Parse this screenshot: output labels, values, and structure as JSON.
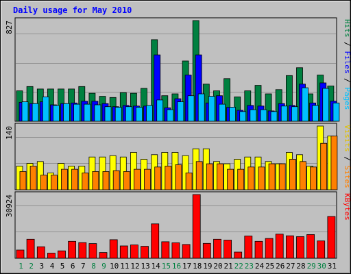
{
  "chart_data": {
    "type": "bar",
    "title": "Daily usage for May 2010",
    "days": [
      "1",
      "2",
      "3",
      "4",
      "5",
      "6",
      "7",
      "8",
      "9",
      "10",
      "11",
      "12",
      "13",
      "14",
      "15",
      "16",
      "17",
      "18",
      "19",
      "20",
      "21",
      "22",
      "23",
      "24",
      "25",
      "26",
      "27",
      "28",
      "29",
      "30",
      "31"
    ],
    "weekend_days": [
      "1",
      "2",
      "8",
      "9",
      "15",
      "16",
      "22",
      "23",
      "29",
      "30"
    ],
    "panels": [
      {
        "id": "hits-files-pages",
        "max_label": "827",
        "ymax": 827,
        "axis_labels": [
          "Pages",
          "Files",
          "Hits"
        ],
        "series": [
          {
            "name": "Hits",
            "color": "#008040",
            "values": [
              250,
              285,
              265,
              265,
              265,
              265,
              285,
              230,
              205,
              195,
              235,
              230,
              270,
              670,
              210,
              225,
              495,
              827,
              305,
              250,
              350,
              200,
              250,
              295,
              225,
              260,
              375,
              440,
              225,
              380,
              290
            ]
          },
          {
            "name": "Files",
            "color": "#0000ff",
            "values": [
              155,
              145,
              160,
              135,
              145,
              150,
              165,
              165,
              145,
              120,
              130,
              125,
              125,
              545,
              110,
              185,
              380,
              545,
              150,
              210,
              115,
              90,
              130,
              125,
              85,
              145,
              130,
              305,
              150,
              315,
              165
            ]
          },
          {
            "name": "Pages",
            "color": "#00c0ff",
            "values": [
              160,
              145,
              200,
              130,
              145,
              140,
              140,
              135,
              120,
              115,
              120,
              115,
              130,
              175,
              95,
              160,
              210,
              225,
              205,
              140,
              115,
              80,
              95,
              95,
              80,
              125,
              120,
              275,
              130,
              270,
              150
            ]
          }
        ]
      },
      {
        "id": "visits-sites",
        "max_label": "140",
        "ymax": 140,
        "axis_labels": [
          "Sites",
          "Visits"
        ],
        "series": [
          {
            "name": "Visits",
            "color": "#ffff00",
            "values": [
              52,
              58,
              62,
              37,
              58,
              52,
              52,
              72,
              72,
              75,
              72,
              82,
              67,
              77,
              82,
              82,
              75,
              90,
              90,
              62,
              57,
              67,
              72,
              72,
              62,
              57,
              82,
              77,
              52,
              140,
              118
            ]
          },
          {
            "name": "Sites",
            "color": "#ff8000",
            "values": [
              40,
              52,
              32,
              32,
              45,
              45,
              37,
              40,
              40,
              42,
              40,
              45,
              45,
              50,
              52,
              55,
              37,
              62,
              57,
              57,
              45,
              45,
              50,
              50,
              57,
              57,
              67,
              62,
              50,
              102,
              118
            ]
          }
        ]
      },
      {
        "id": "kbytes",
        "max_label": "30924",
        "ymax": 30924,
        "axis_labels": [
          "KBytes"
        ],
        "series": [
          {
            "name": "KBytes",
            "color": "#ff0000",
            "values": [
              4000,
              9200,
              5600,
              2500,
              3600,
              8200,
              7600,
              7100,
              2800,
              9000,
              6000,
              6500,
              5800,
              16700,
              8000,
              7500,
              6700,
              30924,
              7200,
              9200,
              8800,
              3000,
              10800,
              8200,
              9600,
              11700,
              10900,
              10500,
              11500,
              8400,
              20300
            ]
          }
        ]
      }
    ]
  }
}
